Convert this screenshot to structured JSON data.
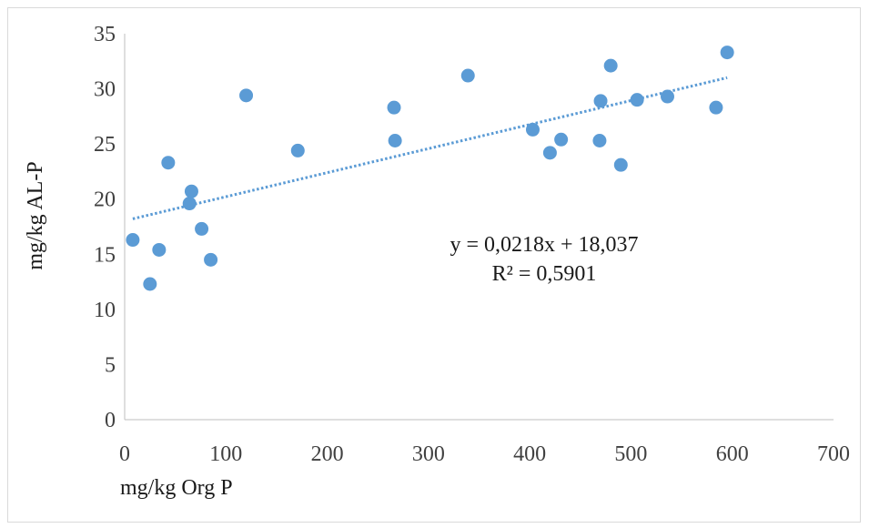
{
  "chart_data": {
    "type": "scatter",
    "title": "",
    "xlabel": "mg/kg Org P",
    "ylabel": "mg/kg AL-P",
    "xlim": [
      0,
      700
    ],
    "ylim": [
      0,
      35
    ],
    "x_ticks": [
      "0",
      "100",
      "200",
      "300",
      "400",
      "500",
      "600",
      "700"
    ],
    "y_ticks": [
      "0",
      "5",
      "10",
      "15",
      "20",
      "25",
      "30",
      "35"
    ],
    "grid": false,
    "legend": "none",
    "series": [
      {
        "color": "#5b9bd5",
        "points": [
          {
            "x": 8,
            "y": 16.3
          },
          {
            "x": 25,
            "y": 12.3
          },
          {
            "x": 34,
            "y": 15.4
          },
          {
            "x": 43,
            "y": 23.3
          },
          {
            "x": 64,
            "y": 19.6
          },
          {
            "x": 66,
            "y": 20.7
          },
          {
            "x": 76,
            "y": 17.3
          },
          {
            "x": 85,
            "y": 14.5
          },
          {
            "x": 120,
            "y": 29.4
          },
          {
            "x": 171,
            "y": 24.4
          },
          {
            "x": 266,
            "y": 28.3
          },
          {
            "x": 267,
            "y": 25.3
          },
          {
            "x": 339,
            "y": 31.2
          },
          {
            "x": 403,
            "y": 26.3
          },
          {
            "x": 420,
            "y": 24.2
          },
          {
            "x": 431,
            "y": 25.4
          },
          {
            "x": 469,
            "y": 25.3
          },
          {
            "x": 470,
            "y": 28.9
          },
          {
            "x": 480,
            "y": 32.1
          },
          {
            "x": 490,
            "y": 23.1
          },
          {
            "x": 506,
            "y": 29.0
          },
          {
            "x": 536,
            "y": 29.3
          },
          {
            "x": 584,
            "y": 28.3
          },
          {
            "x": 595,
            "y": 33.3
          }
        ]
      }
    ],
    "trendline": {
      "type": "linear",
      "slope": 0.0218,
      "intercept": 18.037,
      "x_range": [
        8,
        595
      ],
      "color": "#5b9bd5",
      "style": "dotted",
      "equation": "y = 0,0218x + 18,037",
      "r_squared": "R² = 0,5901"
    }
  }
}
